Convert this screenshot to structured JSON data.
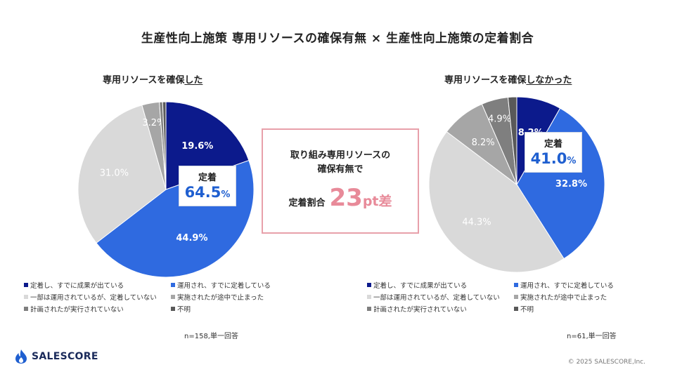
{
  "title": "生産性向上施策 専用リソースの確保有無 × 生産性向上施策の定着割合",
  "colors": {
    "navy": "#0c1a8c",
    "blue": "#2f6ae0",
    "light_gray": "#d9d9d9",
    "mid_gray": "#a6a6a6",
    "dark_gray": "#7f7f7f",
    "darkest_gray": "#595959",
    "accent_pink": "#e88a99"
  },
  "chart_data": [
    {
      "type": "pie",
      "title_prefix": "専用リソースを確保",
      "title_underlined": "した",
      "slices": [
        {
          "label": "定着し、すでに成果が出ている",
          "value": 19.6,
          "display": "19.6%",
          "color": "#0c1a8c"
        },
        {
          "label": "運用され、すでに定着している",
          "value": 44.9,
          "display": "44.9%",
          "color": "#2f6ae0"
        },
        {
          "label": "一部は運用されているが、定着していない",
          "value": 31.0,
          "display": "31.0%",
          "color": "#d9d9d9"
        },
        {
          "label": "実施されたが途中で止まった",
          "value": 3.2,
          "display": "3.2%",
          "color": "#a6a6a6"
        },
        {
          "label": "計画されたが実行されていない",
          "value": 0.6,
          "display": "",
          "color": "#7f7f7f"
        },
        {
          "label": "不明",
          "value": 0.6,
          "display": "",
          "color": "#595959"
        }
      ],
      "callout": {
        "label": "定着",
        "value": "64.5",
        "unit": "%"
      },
      "note": "n=158,単一回答"
    },
    {
      "type": "pie",
      "title_prefix": "専用リソースを確保",
      "title_underlined": "しなかった",
      "slices": [
        {
          "label": "定着し、すでに成果が出ている",
          "value": 8.2,
          "display": "8.2%",
          "color": "#0c1a8c"
        },
        {
          "label": "運用され、すでに定着している",
          "value": 32.8,
          "display": "32.8%",
          "color": "#2f6ae0"
        },
        {
          "label": "一部は運用されているが、定着していない",
          "value": 44.3,
          "display": "44.3%",
          "color": "#d9d9d9"
        },
        {
          "label": "実施されたが途中で止まった",
          "value": 8.2,
          "display": "8.2%",
          "color": "#a6a6a6"
        },
        {
          "label": "計画されたが実行されていない",
          "value": 4.9,
          "display": "4.9%",
          "color": "#7f7f7f"
        },
        {
          "label": "不明",
          "value": 1.6,
          "display": "",
          "color": "#595959"
        }
      ],
      "callout": {
        "label": "定着",
        "value": "41.0",
        "unit": "%"
      },
      "note": "n=61,単一回答"
    }
  ],
  "center_box": {
    "line1": "取り組み専用リソースの",
    "line2": "確保有無で",
    "prefix": "定着割合",
    "value": "23",
    "unit": "pt差"
  },
  "legend": [
    {
      "label": "定着し、すでに成果が出ている",
      "color": "#0c1a8c"
    },
    {
      "label": "運用され、すでに定着している",
      "color": "#2f6ae0"
    },
    {
      "label": "一部は運用されているが、定着していない",
      "color": "#d9d9d9"
    },
    {
      "label": "実施されたが途中で止まった",
      "color": "#a6a6a6"
    },
    {
      "label": "計画されたが実行されていない",
      "color": "#7f7f7f"
    },
    {
      "label": "不明",
      "color": "#595959"
    }
  ],
  "logo": {
    "text": "SALESCORE",
    "icon": "flame-drop-icon"
  },
  "copyright": "© 2025 SALESCORE,Inc."
}
